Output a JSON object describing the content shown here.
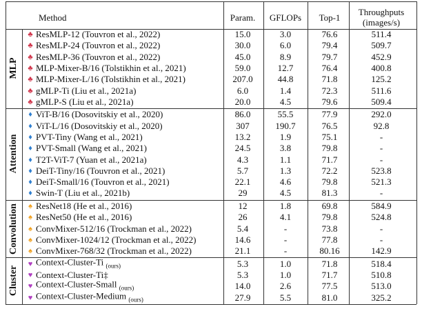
{
  "table": {
    "header": {
      "method": "Method",
      "param": "Param.",
      "gflops": "GFLOPs",
      "top1": "Top-1",
      "throughput": [
        "Throughputs",
        "(images/s)"
      ]
    },
    "groups": [
      {
        "label": "MLP",
        "rows": [
          {
            "method": "ResMLP-12 (Touvron et al., 2022)",
            "param": "15.0",
            "gflops": "3.0",
            "top1": "76.6",
            "throughput": "511.4"
          },
          {
            "method": "ResMLP-24 (Touvron et al., 2022)",
            "param": "30.0",
            "gflops": "6.0",
            "top1": "79.4",
            "throughput": "509.7"
          },
          {
            "method": "ResMLP-36 (Touvron et al., 2022)",
            "param": "45.0",
            "gflops": "8.9",
            "top1": "79.7",
            "throughput": "452.9"
          },
          {
            "method": "MLP-Mixer-B/16 (Tolstikhin et al., 2021)",
            "param": "59.0",
            "gflops": "12.7",
            "top1": "76.4",
            "throughput": "400.8"
          },
          {
            "method": "MLP-Mixer-L/16 (Tolstikhin et al., 2021)",
            "param": "207.0",
            "gflops": "44.8",
            "top1": "71.8",
            "throughput": "125.2"
          },
          {
            "method": "gMLP-Ti (Liu et al., 2021a)",
            "param": "6.0",
            "gflops": "1.4",
            "top1": "72.3",
            "throughput": "511.6"
          },
          {
            "method": "gMLP-S (Liu et al., 2021a)",
            "param": "20.0",
            "gflops": "4.5",
            "top1": "79.6",
            "throughput": "509.4"
          }
        ]
      },
      {
        "label": "Attention",
        "rows": [
          {
            "method": "ViT-B/16 (Dosovitskiy et al., 2020)",
            "param": "86.0",
            "gflops": "55.5",
            "top1": "77.9",
            "throughput": "292.0"
          },
          {
            "method": "ViT-L/16 (Dosovitskiy et al., 2020)",
            "param": "307",
            "gflops": "190.7",
            "top1": "76.5",
            "throughput": "92.8"
          },
          {
            "method": "PVT-Tiny (Wang et al., 2021)",
            "param": "13.2",
            "gflops": "1.9",
            "top1": "75.1",
            "throughput": "-"
          },
          {
            "method": "PVT-Small (Wang et al., 2021)",
            "param": "24.5",
            "gflops": "3.8",
            "top1": "79.8",
            "throughput": "-"
          },
          {
            "method": "T2T-ViT-7 (Yuan et al., 2021a)",
            "param": "4.3",
            "gflops": "1.1",
            "top1": "71.7",
            "throughput": "-"
          },
          {
            "method": "DeiT-Tiny/16 (Touvron et al., 2021)",
            "param": "5.7",
            "gflops": "1.3",
            "top1": "72.2",
            "throughput": "523.8"
          },
          {
            "method": "DeiT-Small/16 (Touvron et al., 2021)",
            "param": "22.1",
            "gflops": "4.6",
            "top1": "79.8",
            "throughput": "521.3"
          },
          {
            "method": "Swin-T (Liu et al., 2021b)",
            "param": "29",
            "gflops": "4.5",
            "top1": "81.3",
            "throughput": "-"
          }
        ]
      },
      {
        "label": "Convolution",
        "rows": [
          {
            "method": "ResNet18 (He et al., 2016)",
            "param": "12",
            "gflops": "1.8",
            "top1": "69.8",
            "throughput": "584.9"
          },
          {
            "method": "ResNet50 (He et al., 2016)",
            "param": "26",
            "gflops": "4.1",
            "top1": "79.8",
            "throughput": "524.8"
          },
          {
            "method": "ConvMixer-512/16 (Trockman et al., 2022)",
            "param": "5.4",
            "gflops": "-",
            "top1": "73.8",
            "throughput": "-"
          },
          {
            "method": "ConvMixer-1024/12 (Trockman et al., 2022)",
            "param": "14.6",
            "gflops": "-",
            "top1": "77.8",
            "throughput": "-"
          },
          {
            "method": "ConvMixer-768/32 (Trockman et al., 2022)",
            "param": "21.1",
            "gflops": "-",
            "top1": "80.16",
            "throughput": "142.9"
          }
        ]
      },
      {
        "label": "Cluster",
        "rows": [
          {
            "method": "Context-Cluster-Ti",
            "note": "(ours)",
            "param": "5.3",
            "gflops": "1.0",
            "top1": "71.8",
            "throughput": "518.4"
          },
          {
            "method": "Context-Cluster-Ti‡",
            "param": "5.3",
            "gflops": "1.0",
            "top1": "71.7",
            "throughput": "510.8"
          },
          {
            "method": "Context-Cluster-Small",
            "note": "(ours)",
            "param": "14.0",
            "gflops": "2.6",
            "top1": "77.5",
            "throughput": "513.0"
          },
          {
            "method": "Context-Cluster-Medium",
            "note": "(ours)",
            "param": "27.9",
            "gflops": "5.5",
            "top1": "81.0",
            "throughput": "325.2"
          }
        ]
      }
    ]
  }
}
